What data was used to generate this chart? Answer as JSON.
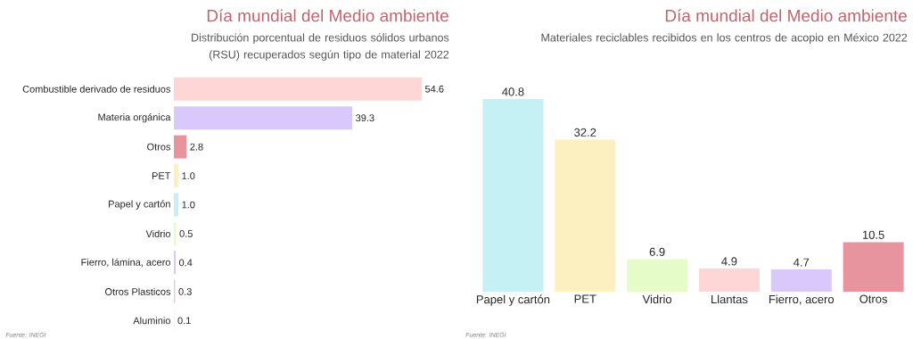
{
  "chart_data": [
    {
      "type": "bar",
      "orientation": "horizontal",
      "title": "Día mundial del Medio ambiente",
      "subtitle": "Distribución porcentual de residuos sólidos urbanos (RSU) recuperados según tipo de material 2022",
      "categories": [
        "Combustible derivado de residuos",
        "Materia orgánica",
        "Otros",
        "PET",
        "Papel y cartón",
        "Vidrio",
        "Fierro, lámina, acero",
        "Otros Plasticos",
        "Aluminio"
      ],
      "values": [
        54.6,
        39.3,
        2.8,
        1.0,
        1.0,
        0.5,
        0.4,
        0.3,
        0.1
      ],
      "colors": [
        "#ffd6d6",
        "#d9c8fa",
        "#e8949f",
        "#fcf0be",
        "#c5f1f4",
        "#e5fcc8",
        "#d9c8fa",
        "#f5c8d8",
        "#fcf0be"
      ],
      "value_labels": [
        "54.6",
        "39.3",
        "2.8",
        "1.0",
        "1.0",
        "0.5",
        "0.4",
        "0.3",
        "0.1"
      ],
      "annotations": [
        "Fuente: INEGI"
      ]
    },
    {
      "type": "bar",
      "title": "Día mundial del Medio ambiente",
      "subtitle": "Materiales reciclables recibidos en los centros de acopio en México 2022",
      "categories": [
        "Papel y cartón",
        "PET",
        "Vidrio",
        "Llantas",
        "Fierro, acero",
        "Otros"
      ],
      "values": [
        40.8,
        32.2,
        6.9,
        4.9,
        4.7,
        10.5
      ],
      "colors": [
        "#c5f1f4",
        "#fcefc0",
        "#e5fcc8",
        "#ffd6d6",
        "#d9c8fa",
        "#e8949f"
      ],
      "data_labels": true,
      "annotations": [
        "Fuente: INEGI"
      ]
    }
  ]
}
